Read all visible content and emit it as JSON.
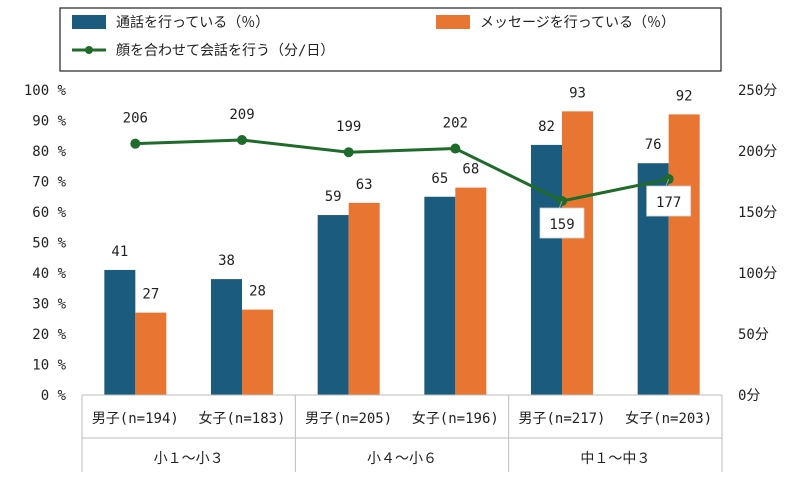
{
  "chart_data": {
    "type": "bar",
    "categories": [
      {
        "label": "男子(n=194)",
        "group": 0
      },
      {
        "label": "女子(n=183)",
        "group": 0
      },
      {
        "label": "男子(n=205)",
        "group": 1
      },
      {
        "label": "女子(n=196)",
        "group": 1
      },
      {
        "label": "男子(n=217)",
        "group": 2
      },
      {
        "label": "女子(n=203)",
        "group": 2
      }
    ],
    "groups": [
      "小１～小３",
      "小４～小６",
      "中１～中３"
    ],
    "series": [
      {
        "name": "通話を行っている（％）",
        "type": "bar",
        "axis": "left",
        "color": "#1b5c7e",
        "values": [
          41,
          38,
          59,
          65,
          82,
          76
        ]
      },
      {
        "name": "メッセージを行っている（％）",
        "type": "bar",
        "axis": "left",
        "color": "#e87632",
        "values": [
          27,
          28,
          63,
          68,
          93,
          92
        ]
      },
      {
        "name": "顔を合わせて会話を行う（分/日）",
        "type": "line",
        "axis": "right",
        "color": "#1f6b2a",
        "values": [
          206,
          209,
          199,
          202,
          159,
          177
        ]
      }
    ],
    "y_left": {
      "min": 0,
      "max": 100,
      "ticks": [
        "0 %",
        "10 %",
        "20 %",
        "30 %",
        "40 %",
        "50 %",
        "60 %",
        "70 %",
        "80 %",
        "90 %",
        "100 %"
      ]
    },
    "y_right": {
      "min": 0,
      "max": 250,
      "ticks": [
        "0分",
        "50分",
        "100分",
        "150分",
        "200分",
        "250分"
      ]
    },
    "legend_position": "top",
    "grid": false
  }
}
